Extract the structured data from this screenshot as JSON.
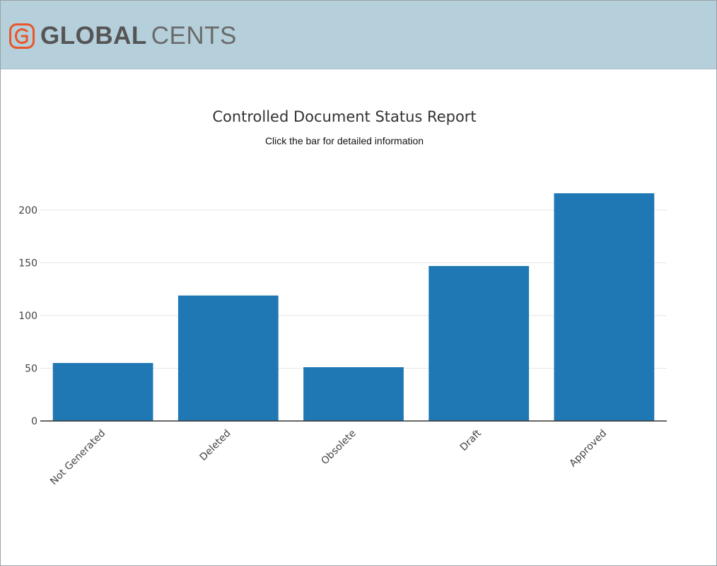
{
  "brand": {
    "name_left": "GLOBAL",
    "name_right": "CENTS",
    "accent_color": "#e8562a",
    "text_color": "#555555",
    "header_bg": "#b5cfdb"
  },
  "chart_data": {
    "type": "bar",
    "title": "Controlled Document Status Report",
    "subtitle": "Click the bar for detailed information",
    "categories": [
      "Not Generated",
      "Deleted",
      "Obsolete",
      "Draft",
      "Approved"
    ],
    "values": [
      55,
      119,
      51,
      147,
      216
    ],
    "xlabel": "",
    "ylabel": "",
    "ylim": [
      0,
      220
    ],
    "yticks": [
      0,
      50,
      100,
      150,
      200
    ],
    "bar_color": "#1f77b4",
    "grid": true,
    "x_tick_rotation": "-45"
  }
}
